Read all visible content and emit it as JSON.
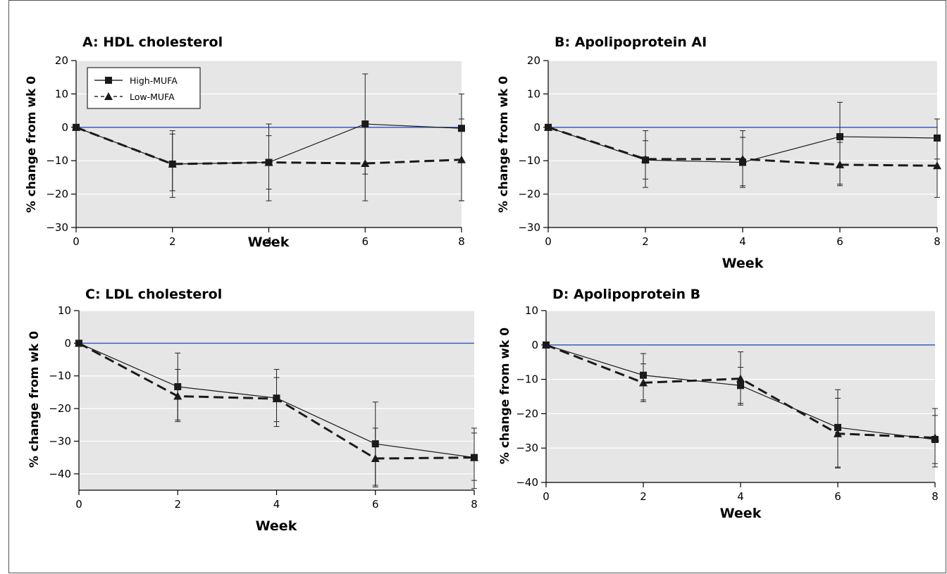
{
  "chart_data": [
    {
      "type": "line",
      "title": "A: HDL cholesterol",
      "xlabel": "Week",
      "ylabel": "% change from wk 0",
      "x": [
        0,
        2,
        4,
        6,
        8
      ],
      "ylim": [
        -30,
        20
      ],
      "yticks": [
        20,
        10,
        0,
        -10,
        -20,
        -30
      ],
      "xticks": [
        0,
        2,
        4,
        6,
        8
      ],
      "legend": {
        "placement": "top-left",
        "entries": [
          "High-MUFA",
          "Low-MUFA"
        ]
      },
      "series": [
        {
          "name": "High-MUFA",
          "values": [
            0,
            -11,
            -10.5,
            1,
            -0.3
          ],
          "err_low": [
            0,
            -21,
            -22,
            -14,
            -22
          ],
          "err_high": [
            0,
            -1,
            1,
            16,
            10
          ]
        },
        {
          "name": "Low-MUFA",
          "values": [
            0,
            -11,
            -10.5,
            -10.8,
            -9.7
          ],
          "err_low": [
            0,
            -19,
            -18.5,
            -22,
            -22
          ],
          "err_high": [
            0,
            -2,
            -2.5,
            0,
            2.5
          ]
        }
      ]
    },
    {
      "type": "line",
      "title": "B: Apolipoprotein AI",
      "xlabel": "Week",
      "ylabel": "% change from wk 0",
      "x": [
        0,
        2,
        4,
        6,
        8
      ],
      "ylim": [
        -30,
        20
      ],
      "yticks": [
        20,
        10,
        0,
        -10,
        -20,
        -30
      ],
      "xticks": [
        0,
        2,
        4,
        6,
        8
      ],
      "series": [
        {
          "name": "High-MUFA",
          "values": [
            0,
            -9.8,
            -10.5,
            -2.8,
            -3.2
          ],
          "err_low": [
            0,
            -18,
            -18,
            -17.5,
            -9.5
          ],
          "err_high": [
            0,
            -1,
            -1,
            7.5,
            2.5
          ]
        },
        {
          "name": "Low-MUFA",
          "values": [
            0,
            -9.5,
            -9.5,
            -11.2,
            -11.5
          ],
          "err_low": [
            0,
            -15.5,
            -17.5,
            -17,
            -21
          ],
          "err_high": [
            0,
            -4,
            -3,
            -4.5,
            -3.5
          ]
        }
      ]
    },
    {
      "type": "line",
      "title": "C: LDL cholesterol",
      "xlabel": "Week",
      "ylabel": "% change from wk 0",
      "x": [
        0,
        2,
        4,
        6,
        8
      ],
      "ylim": [
        -45,
        10
      ],
      "yticks": [
        10,
        0,
        -10,
        -20,
        -30,
        -40
      ],
      "xticks": [
        0,
        2,
        4,
        6,
        8
      ],
      "series": [
        {
          "name": "High-MUFA",
          "values": [
            0,
            -13.3,
            -16.8,
            -30.8,
            -35
          ],
          "err_low": [
            0,
            -24,
            -25.5,
            -44,
            -44.5
          ],
          "err_high": [
            0,
            -3,
            -8,
            -18,
            -26
          ]
        },
        {
          "name": "Low-MUFA",
          "values": [
            0,
            -16.2,
            -17,
            -35.3,
            -35
          ],
          "err_low": [
            0,
            -23.5,
            -24,
            -43.5,
            -42
          ],
          "err_high": [
            0,
            -8,
            -10.5,
            -26,
            -27.5
          ]
        }
      ]
    },
    {
      "type": "line",
      "title": "D: Apolipoprotein B",
      "xlabel": "Week",
      "ylabel": "% change from wk 0",
      "x": [
        0,
        2,
        4,
        6,
        8
      ],
      "ylim": [
        -40,
        10
      ],
      "yticks": [
        10,
        0,
        -10,
        -20,
        -30,
        -40
      ],
      "xticks": [
        0,
        2,
        4,
        6,
        8
      ],
      "series": [
        {
          "name": "High-MUFA",
          "values": [
            0,
            -8.8,
            -11.8,
            -24,
            -27.5
          ],
          "err_low": [
            0,
            -16.5,
            -17.5,
            -35.5,
            -35.5
          ],
          "err_high": [
            0,
            -2.5,
            -2,
            -13,
            -18.5
          ]
        },
        {
          "name": "Low-MUFA",
          "values": [
            0,
            -11,
            -9.8,
            -25.8,
            -27
          ],
          "err_low": [
            0,
            -16,
            -17,
            -35.8,
            -34.5
          ],
          "err_high": [
            0,
            -5.5,
            -6.5,
            -15.5,
            -20.5
          ]
        }
      ]
    }
  ],
  "style": {
    "plot_bg": "#e6e6e6",
    "gridline": "#ffffff",
    "zero_line": "#3b5fc0",
    "series_color": "#1a1a1a",
    "text": "#000000"
  }
}
